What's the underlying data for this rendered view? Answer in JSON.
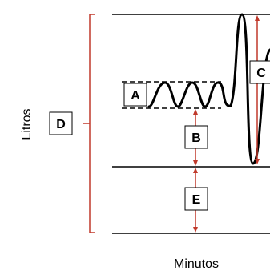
{
  "axes": {
    "y_label": "Litros",
    "x_label": "Minutos"
  },
  "labels": {
    "a": "A",
    "b": "B",
    "c": "C",
    "d": "D",
    "e": "E"
  },
  "colors": {
    "line": "#000000",
    "accent": "#c0392b"
  }
}
